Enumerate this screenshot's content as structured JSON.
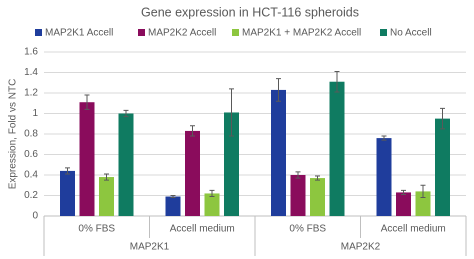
{
  "chart_data": {
    "type": "bar",
    "title": "Gene expression in HCT-116 spheroids",
    "y_label": "Expression, Fold vs NTC",
    "categories": [
      "0% FBS",
      "Accell medium",
      "0% FBS",
      "Accell medium"
    ],
    "category_groups": [
      "MAP2K1",
      "MAP2K2"
    ],
    "series": [
      {
        "name": "MAP2K1 Accell",
        "color": "#1f3d9c",
        "values": [
          0.44,
          0.19,
          1.23,
          0.76
        ],
        "errors": [
          0.03,
          0.01,
          0.11,
          0.02
        ]
      },
      {
        "name": "MAP2K2 Accell",
        "color": "#8a0c5c",
        "values": [
          1.11,
          0.83,
          0.4,
          0.23
        ],
        "errors": [
          0.07,
          0.05,
          0.03,
          0.02
        ]
      },
      {
        "name": "MAP2K1 + MAP2K2 Accell",
        "color": "#8dc63f",
        "values": [
          0.38,
          0.22,
          0.37,
          0.24
        ],
        "errors": [
          0.03,
          0.03,
          0.02,
          0.06
        ]
      },
      {
        "name": "No Accell",
        "color": "#0f7b61",
        "values": [
          1.0,
          1.01,
          1.31,
          0.95
        ],
        "errors": [
          0.03,
          0.23,
          0.1,
          0.1
        ]
      }
    ],
    "ylim": [
      0,
      1.6
    ],
    "yticks": [
      0,
      0.2,
      0.4,
      0.6,
      0.8,
      1,
      1.2,
      1.4,
      1.6
    ],
    "grid": true
  }
}
